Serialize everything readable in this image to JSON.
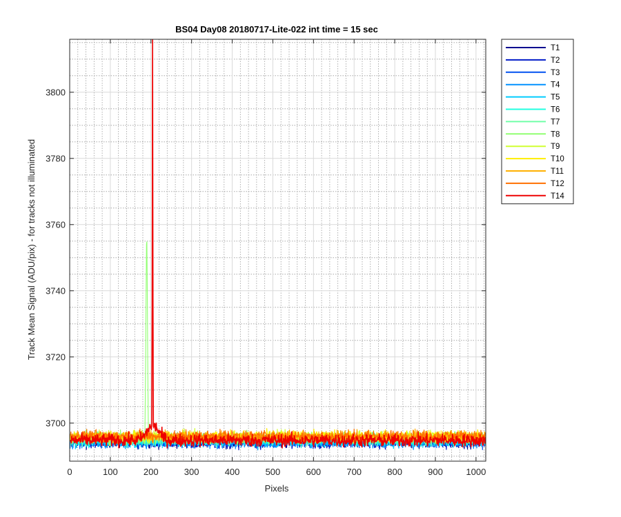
{
  "chart_data": {
    "type": "line",
    "title": "BS04 Day08 20180717-Lite-022 int time = 15 sec",
    "xlabel": "Pixels",
    "ylabel": "Track Mean Signal (ADU/pix) - for tracks not illuminated",
    "xlim": [
      0,
      1024
    ],
    "ylim": [
      3688.5,
      3816
    ],
    "xticks": [
      0,
      100,
      200,
      300,
      400,
      500,
      600,
      700,
      800,
      900,
      1000
    ],
    "yticks": [
      3700,
      3720,
      3740,
      3760,
      3780,
      3800
    ],
    "grid": true,
    "minor_grid": true,
    "legend_position": "outside-top-right",
    "series": [
      {
        "name": "T1",
        "color": "#00008f",
        "baseline": 3694.3,
        "noise": 1.3
      },
      {
        "name": "T2",
        "color": "#0019c8",
        "baseline": 3694.2,
        "noise": 1.3
      },
      {
        "name": "T3",
        "color": "#0050f0",
        "baseline": 3694.6,
        "noise": 1.3
      },
      {
        "name": "T4",
        "color": "#0090ff",
        "baseline": 3694.2,
        "noise": 1.3
      },
      {
        "name": "T5",
        "color": "#00ccff",
        "baseline": 3694.6,
        "noise": 1.3
      },
      {
        "name": "T6",
        "color": "#20ffe0",
        "baseline": 3694.8,
        "noise": 1.3
      },
      {
        "name": "T7",
        "color": "#70ffa8",
        "baseline": 3695.2,
        "noise": 1.3
      },
      {
        "name": "T8",
        "color": "#90ff70",
        "baseline": 3695.5,
        "noise": 1.3,
        "spike": {
          "x_start": 186,
          "x_end": 193,
          "peak": 3764
        }
      },
      {
        "name": "T9",
        "color": "#d0ff30",
        "baseline": 3695.8,
        "noise": 1.3
      },
      {
        "name": "T10",
        "color": "#ffee00",
        "baseline": 3696.0,
        "noise": 1.3
      },
      {
        "name": "T11",
        "color": "#ffb000",
        "baseline": 3695.9,
        "noise": 1.3
      },
      {
        "name": "T12",
        "color": "#ff7000",
        "baseline": 3696.1,
        "noise": 1.3
      },
      {
        "name": "T14",
        "color": "#ee0000",
        "baseline": 3694.8,
        "noise": 1.4,
        "bump": {
          "center": 205,
          "height": 4.5,
          "width": 20
        },
        "spike": {
          "x_start": 203,
          "x_end": 205,
          "peak": 3816
        }
      }
    ]
  }
}
